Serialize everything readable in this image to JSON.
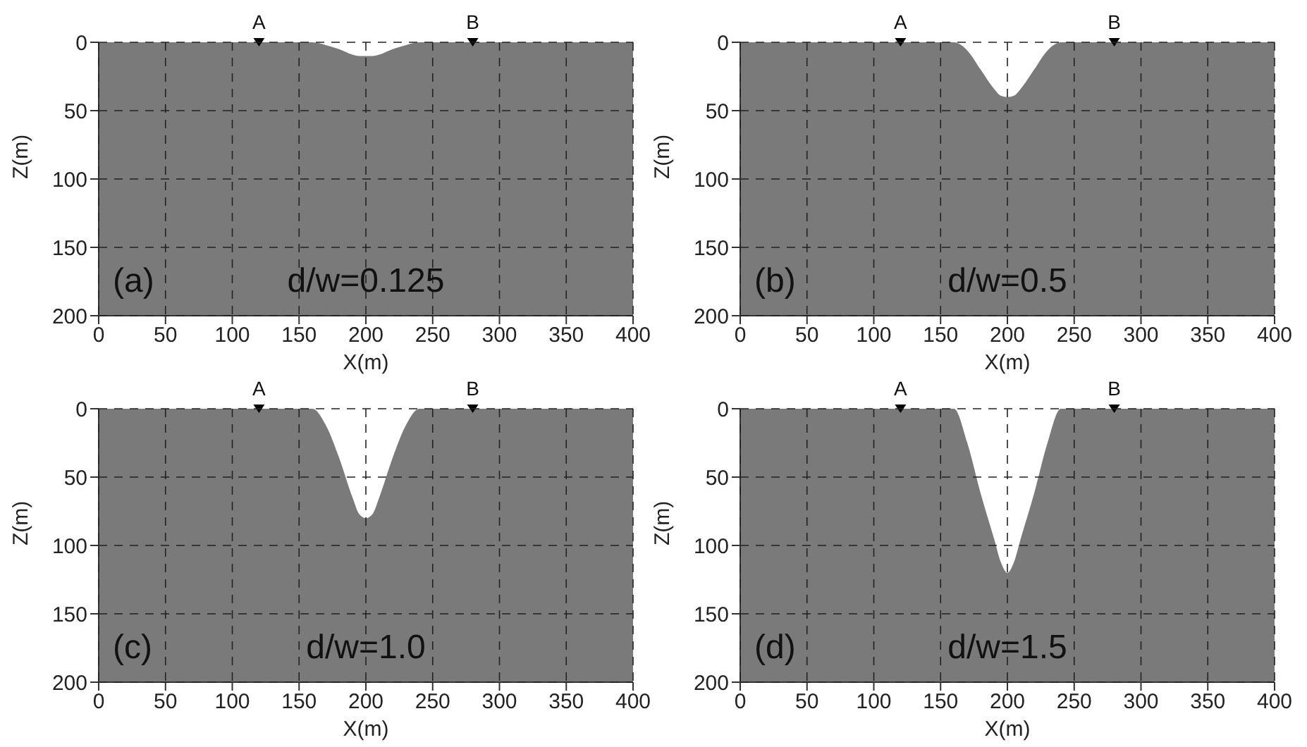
{
  "chart_data": [
    {
      "type": "area",
      "xlabel": "X(m)",
      "ylabel": "Z(m)",
      "xlim": [
        0,
        400
      ],
      "xticks": [
        0,
        50,
        100,
        150,
        200,
        250,
        300,
        350,
        400
      ],
      "ylim": [
        200,
        0
      ],
      "yticks": [
        0,
        50,
        100,
        150,
        200
      ],
      "grid": true,
      "annotations": [
        "(a)",
        "d/w=0.125"
      ],
      "series": [
        {
          "type": "area",
          "color": "#ffffff",
          "x": [
            0,
            160,
            170,
            180,
            190,
            195,
            200,
            205,
            210,
            220,
            230,
            240,
            400
          ],
          "values": [
            0,
            0,
            2,
            5,
            9,
            10,
            10,
            10,
            9,
            5,
            2,
            0,
            0
          ]
        },
        {
          "type": "scatter",
          "name": "A",
          "color": "#000000",
          "marker": "triangle",
          "x": [
            120
          ],
          "values": [
            0
          ]
        },
        {
          "type": "scatter",
          "name": "B",
          "color": "#000000",
          "marker": "triangle",
          "x": [
            280
          ],
          "values": [
            0
          ]
        }
      ]
    },
    {
      "type": "area",
      "xlabel": "X(m)",
      "ylabel": "Z(m)",
      "xlim": [
        0,
        400
      ],
      "xticks": [
        0,
        50,
        100,
        150,
        200,
        250,
        300,
        350,
        400
      ],
      "ylim": [
        200,
        0
      ],
      "yticks": [
        0,
        50,
        100,
        150,
        200
      ],
      "grid": true,
      "annotations": [
        "(b)",
        "d/w=0.5"
      ],
      "series": [
        {
          "type": "area",
          "color": "#ffffff",
          "x": [
            0,
            160,
            170,
            180,
            190,
            195,
            200,
            205,
            210,
            220,
            230,
            240,
            400
          ],
          "values": [
            0,
            0,
            6,
            20,
            34,
            39,
            40,
            39,
            34,
            20,
            6,
            0,
            0
          ]
        },
        {
          "type": "scatter",
          "name": "A",
          "color": "#000000",
          "marker": "triangle",
          "x": [
            120
          ],
          "values": [
            0
          ]
        },
        {
          "type": "scatter",
          "name": "B",
          "color": "#000000",
          "marker": "triangle",
          "x": [
            280
          ],
          "values": [
            0
          ]
        }
      ]
    },
    {
      "type": "area",
      "xlabel": "X(m)",
      "ylabel": "Z(m)",
      "xlim": [
        0,
        400
      ],
      "xticks": [
        0,
        50,
        100,
        150,
        200,
        250,
        300,
        350,
        400
      ],
      "ylim": [
        200,
        0
      ],
      "yticks": [
        0,
        50,
        100,
        150,
        200
      ],
      "grid": true,
      "annotations": [
        "(c)",
        "d/w=1.0"
      ],
      "series": [
        {
          "type": "area",
          "color": "#ffffff",
          "x": [
            0,
            160,
            170,
            180,
            190,
            195,
            200,
            205,
            210,
            220,
            230,
            240,
            400
          ],
          "values": [
            0,
            0,
            12,
            36,
            65,
            77,
            80,
            77,
            65,
            36,
            12,
            0,
            0
          ]
        },
        {
          "type": "scatter",
          "name": "A",
          "color": "#000000",
          "marker": "triangle",
          "x": [
            120
          ],
          "values": [
            0
          ]
        },
        {
          "type": "scatter",
          "name": "B",
          "color": "#000000",
          "marker": "triangle",
          "x": [
            280
          ],
          "values": [
            0
          ]
        }
      ]
    },
    {
      "type": "area",
      "xlabel": "X(m)",
      "ylabel": "Z(m)",
      "xlim": [
        0,
        400
      ],
      "xticks": [
        0,
        50,
        100,
        150,
        200,
        250,
        300,
        350,
        400
      ],
      "ylim": [
        200,
        0
      ],
      "yticks": [
        0,
        50,
        100,
        150,
        200
      ],
      "grid": true,
      "annotations": [
        "(d)",
        "d/w=1.5"
      ],
      "series": [
        {
          "type": "area",
          "color": "#ffffff",
          "x": [
            0,
            160,
            170,
            180,
            190,
            195,
            200,
            205,
            210,
            220,
            230,
            240,
            400
          ],
          "values": [
            0,
            0,
            25,
            62,
            95,
            112,
            120,
            112,
            95,
            62,
            25,
            0,
            0
          ]
        },
        {
          "type": "scatter",
          "name": "A",
          "color": "#000000",
          "marker": "triangle",
          "x": [
            120
          ],
          "values": [
            0
          ]
        },
        {
          "type": "scatter",
          "name": "B",
          "color": "#000000",
          "marker": "triangle",
          "x": [
            280
          ],
          "values": [
            0
          ]
        }
      ]
    }
  ]
}
